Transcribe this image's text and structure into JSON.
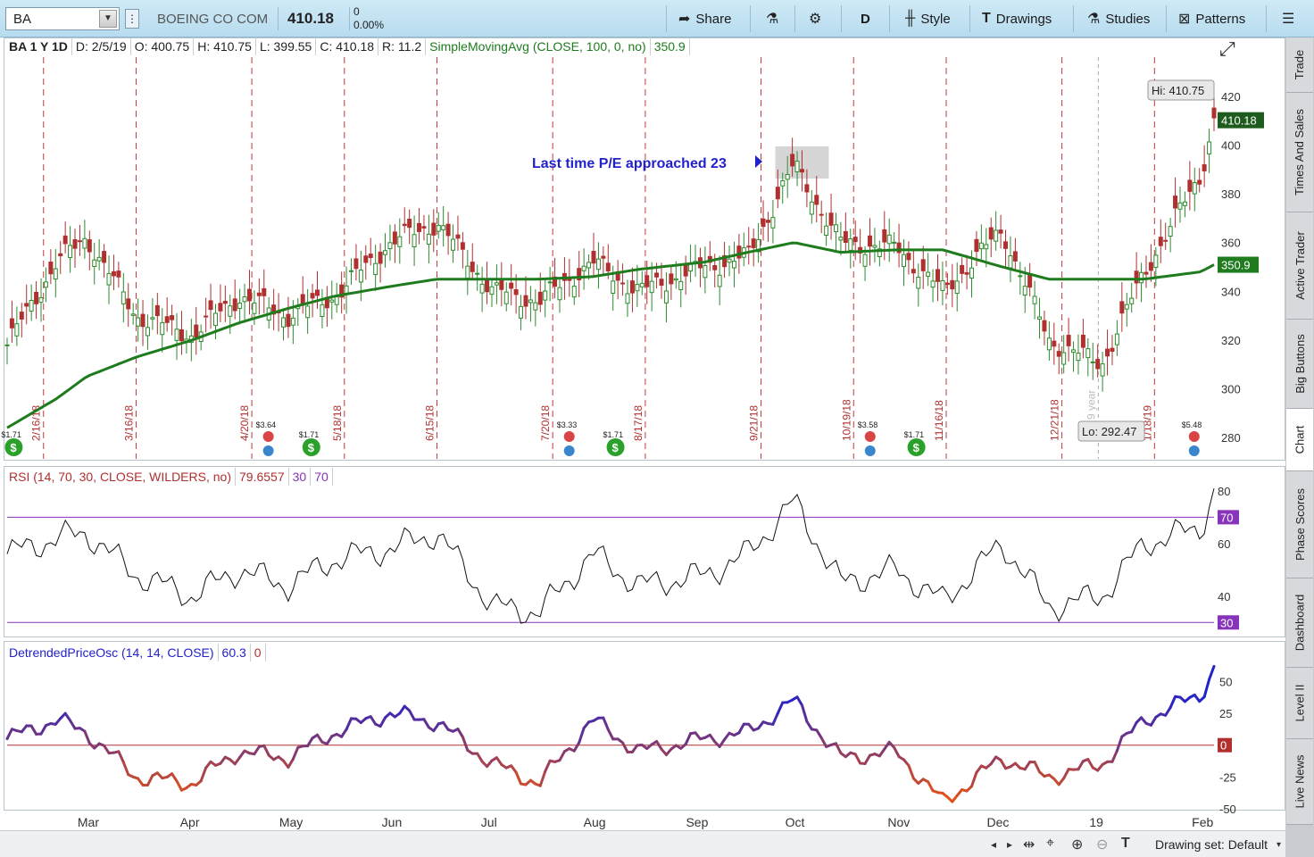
{
  "toolbar": {
    "symbol": "BA",
    "company": "BOEING CO COM",
    "last": "410.18",
    "change": "0",
    "change_pct": "0.00%",
    "share": "Share",
    "aggregation": "D",
    "style": "Style",
    "drawings": "Drawings",
    "studies": "Studies",
    "patterns": "Patterns"
  },
  "price_panel": {
    "header": [
      "BA 1 Y 1D",
      "D: 2/5/19",
      "O: 400.75",
      "H: 410.75",
      "L: 399.55",
      "C: 410.18",
      "R: 11.2",
      "SimpleMovingAvg (CLOSE, 100, 0, no)",
      "350.9"
    ],
    "hi_label": "Hi: 410.75",
    "lo_label": "Lo: 292.47",
    "last_badge": "410.18",
    "sma_badge": "350.9",
    "annotation": "Last time P/E approached 23",
    "year_label": "9 year"
  },
  "rsi_panel": {
    "header": [
      "RSI (14, 70, 30, CLOSE, WILDERS, no)",
      "79.6557",
      "30",
      "70"
    ],
    "badge_70": "70",
    "badge_30": "30"
  },
  "dpo_panel": {
    "header": [
      "DetrendedPriceOsc (14, 14, CLOSE)",
      "60.3",
      "0"
    ],
    "badge_0": "0"
  },
  "x_axis": [
    "Mar",
    "Apr",
    "May",
    "Jun",
    "Jul",
    "Aug",
    "Sep",
    "Oct",
    "Nov",
    "Dec",
    "19",
    "Feb"
  ],
  "expiration_dates": [
    "2/16/18",
    "3/16/18",
    "4/20/18",
    "5/18/18",
    "6/15/18",
    "7/20/18",
    "8/17/18",
    "9/21/18",
    "10/19/18",
    "11/16/18",
    "12/21/18",
    "1/18/19"
  ],
  "events": {
    "dividends": [
      "$1.71",
      "$1.71",
      "$1.71",
      "$1.71"
    ],
    "earnings": [
      "$3.64",
      "$3.33",
      "$3.58",
      "$5.48"
    ]
  },
  "side_tabs": [
    "Trade",
    "Times And Sales",
    "Active Trader",
    "Big Buttons",
    "Chart",
    "Phase Scores",
    "Dashboard",
    "Level II",
    "Live News"
  ],
  "bottom": {
    "drawing_set": "Drawing set: Default"
  },
  "colors": {
    "up": "#2d8a2d",
    "down": "#b03030",
    "sma": "#1e7b1e",
    "rsi": "#111111",
    "dpo_up": "#2222cc",
    "dpo_down": "#e0501a"
  },
  "chart_data": [
    {
      "type": "candlestick",
      "title": "BA 1 Y 1D",
      "x": [
        "2018-02-05",
        "2018-02-20",
        "2018-03-01",
        "2018-03-16",
        "2018-04-02",
        "2018-04-16",
        "2018-05-01",
        "2018-05-15",
        "2018-06-01",
        "2018-06-15",
        "2018-07-02",
        "2018-07-16",
        "2018-08-01",
        "2018-08-15",
        "2018-09-04",
        "2018-09-17",
        "2018-10-01",
        "2018-10-15",
        "2018-11-01",
        "2018-11-15",
        "2018-12-03",
        "2018-12-17",
        "2019-01-02",
        "2019-01-15",
        "2019-02-01",
        "2019-02-05"
      ],
      "close": [
        318,
        352,
        362,
        330,
        322,
        338,
        330,
        338,
        360,
        368,
        340,
        336,
        352,
        340,
        350,
        354,
        392,
        360,
        358,
        340,
        365,
        320,
        310,
        348,
        388,
        410.18
      ],
      "sma100": [
        284,
        296,
        305,
        313,
        320,
        327,
        333,
        338,
        342,
        345,
        345,
        345,
        346,
        349,
        352,
        356,
        360,
        356,
        357,
        357,
        350,
        345,
        345,
        345,
        348,
        350.9
      ],
      "ylim": [
        272,
        428
      ],
      "y_ticks": [
        280,
        300,
        320,
        340,
        360,
        380,
        400,
        420
      ]
    },
    {
      "type": "line",
      "title": "RSI (14, 70, 30, CLOSE, WILDERS, no)",
      "values": [
        56,
        62,
        64,
        48,
        40,
        50,
        44,
        54,
        58,
        64,
        36,
        34,
        56,
        44,
        48,
        56,
        76,
        45,
        50,
        38,
        60,
        36,
        40,
        60,
        66,
        79.66
      ],
      "ylim": [
        25,
        82
      ],
      "y_ticks": [
        40,
        60,
        80
      ],
      "levels": [
        30,
        70
      ]
    },
    {
      "type": "line",
      "title": "DetrendedPriceOsc (14, 14, CLOSE)",
      "values": [
        5,
        20,
        10,
        -25,
        -30,
        -5,
        -10,
        10,
        25,
        18,
        -15,
        -30,
        20,
        -5,
        5,
        10,
        35,
        -10,
        -5,
        -45,
        -10,
        -25,
        -15,
        20,
        40,
        60.3
      ],
      "ylim": [
        -50,
        65
      ],
      "y_ticks": [
        -50,
        -25,
        0,
        25,
        50
      ]
    }
  ]
}
